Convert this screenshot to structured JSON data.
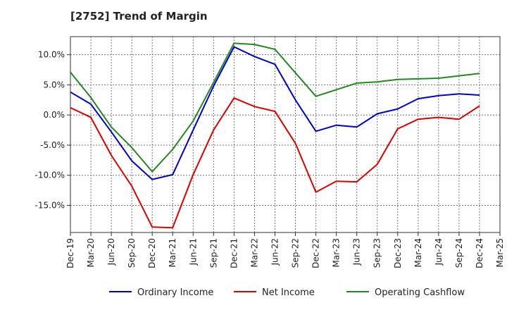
{
  "chart_data": {
    "type": "line",
    "title": "[2752]  Trend of Margin",
    "xlabel": "",
    "ylabel": "",
    "x": [
      "Dec-19",
      "Mar-20",
      "Jun-20",
      "Sep-20",
      "Dec-20",
      "Mar-21",
      "Jun-21",
      "Sep-21",
      "Dec-21",
      "Mar-22",
      "Jun-22",
      "Sep-22",
      "Dec-22",
      "Mar-23",
      "Jun-23",
      "Sep-23",
      "Dec-23",
      "Mar-24",
      "Jun-24",
      "Sep-24",
      "Dec-24",
      "Mar-25"
    ],
    "ylim": [
      -19.5,
      13.0
    ],
    "yticks": [
      10,
      5,
      0,
      -5,
      -10,
      -15
    ],
    "ytick_labels": [
      "10.0%",
      "5.0%",
      "0.0%",
      "-5.0%",
      "-10.0%",
      "-15.0%"
    ],
    "grid": true,
    "legend_position": "bottom",
    "series": [
      {
        "name": "Ordinary Income",
        "color": "#0000cc",
        "values": [
          3.8,
          1.8,
          -2.8,
          -7.6,
          -10.7,
          -9.9,
          -2.5,
          4.8,
          11.3,
          9.7,
          8.4,
          2.5,
          -2.7,
          -1.7,
          -2.0,
          0.2,
          1.0,
          2.7,
          3.2,
          3.5,
          3.3,
          null
        ]
      },
      {
        "name": "Net Income",
        "color": "#dd0000",
        "values": [
          1.2,
          -0.4,
          -6.7,
          -11.8,
          -18.6,
          -18.7,
          -9.9,
          -2.5,
          2.8,
          1.4,
          0.6,
          -4.7,
          -12.8,
          -11.0,
          -11.1,
          -8.2,
          -2.3,
          -0.7,
          -0.4,
          -0.7,
          1.5,
          null
        ]
      },
      {
        "name": "Operating Cashflow",
        "color": "#228822",
        "values": [
          7.1,
          2.9,
          -2.0,
          -5.4,
          -9.4,
          -5.7,
          -1.0,
          5.4,
          11.9,
          11.7,
          10.9,
          7.0,
          3.1,
          4.2,
          5.3,
          5.5,
          5.9,
          6.0,
          6.1,
          6.5,
          6.9,
          null
        ]
      }
    ]
  }
}
